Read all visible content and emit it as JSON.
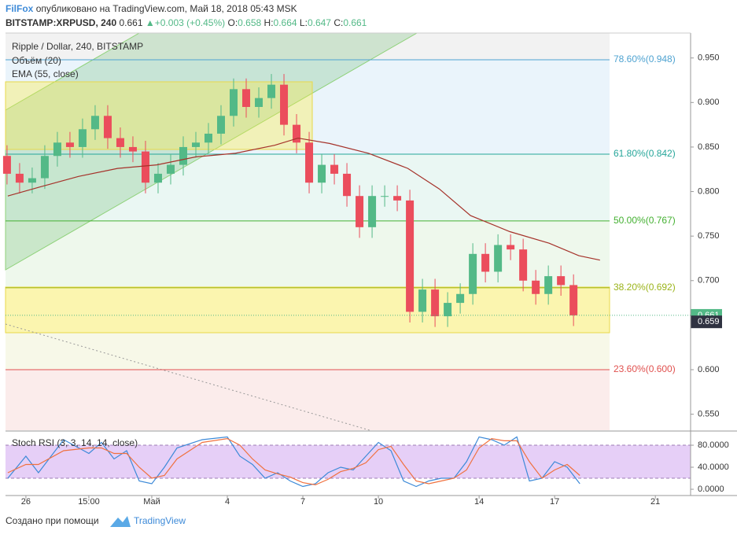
{
  "header": {
    "author": "FilFox",
    "published": "опубликовано на TradingView.com, Май 18, 2018 05:43 MSK",
    "symbol": "BITSTAMP:XRPUSD, 240",
    "last": "0.661",
    "change": "+0.003 (+0.45%)",
    "ohlc": [
      {
        "label": "O:",
        "value": "0.658"
      },
      {
        "label": "H:",
        "value": "0.664"
      },
      {
        "label": "L:",
        "value": "0.647"
      },
      {
        "label": "C:",
        "value": "0.661"
      }
    ]
  },
  "chart_data": {
    "type": "candlestick",
    "title": "Ripple / Dollar, 240, BITSTAMP",
    "volume_label": "Объём (20)",
    "up_color": "#53b987",
    "down_color": "#eb4d5c",
    "x": [
      -0.75,
      -0.25,
      0.25,
      0.75,
      1.25,
      1.75,
      2.25,
      2.75,
      3.25,
      3.75,
      4.25,
      4.75,
      5.25,
      5.75,
      6.25,
      6.75,
      7.25,
      7.75,
      8.25,
      8.75,
      9.25,
      9.75,
      10.25,
      10.75,
      11.25,
      11.75,
      12.25,
      12.75,
      13.25,
      13.75,
      14.25,
      14.75,
      15.25,
      15.75,
      16.25,
      16.75,
      17.25,
      17.75,
      18.25,
      18.75,
      19.25,
      19.75,
      20.25,
      20.75,
      21.25,
      21.75
    ],
    "open": [
      0.84,
      0.82,
      0.81,
      0.815,
      0.84,
      0.855,
      0.85,
      0.87,
      0.885,
      0.86,
      0.85,
      0.845,
      0.81,
      0.82,
      0.83,
      0.85,
      0.855,
      0.865,
      0.885,
      0.915,
      0.895,
      0.905,
      0.92,
      0.875,
      0.855,
      0.81,
      0.83,
      0.82,
      0.795,
      0.76,
      0.795,
      0.795,
      0.79,
      0.665,
      0.69,
      0.66,
      0.675,
      0.685,
      0.73,
      0.71,
      0.74,
      0.735,
      0.7,
      0.685,
      0.705,
      0.695
    ],
    "high": [
      0.852,
      0.832,
      0.827,
      0.852,
      0.867,
      0.867,
      0.882,
      0.897,
      0.897,
      0.872,
      0.862,
      0.857,
      0.832,
      0.842,
      0.862,
      0.867,
      0.877,
      0.897,
      0.927,
      0.927,
      0.917,
      0.932,
      0.932,
      0.887,
      0.867,
      0.842,
      0.842,
      0.832,
      0.807,
      0.807,
      0.807,
      0.807,
      0.802,
      0.702,
      0.702,
      0.687,
      0.697,
      0.742,
      0.742,
      0.752,
      0.752,
      0.747,
      0.712,
      0.717,
      0.717,
      0.707
    ],
    "low": [
      0.808,
      0.798,
      0.798,
      0.803,
      0.828,
      0.838,
      0.838,
      0.858,
      0.848,
      0.838,
      0.833,
      0.798,
      0.798,
      0.808,
      0.818,
      0.838,
      0.843,
      0.853,
      0.873,
      0.883,
      0.883,
      0.893,
      0.863,
      0.843,
      0.798,
      0.798,
      0.808,
      0.783,
      0.748,
      0.748,
      0.783,
      0.778,
      0.653,
      0.653,
      0.648,
      0.648,
      0.663,
      0.673,
      0.698,
      0.698,
      0.723,
      0.688,
      0.673,
      0.673,
      0.683,
      0.649
    ],
    "close": [
      0.82,
      0.81,
      0.815,
      0.84,
      0.855,
      0.85,
      0.87,
      0.885,
      0.86,
      0.85,
      0.845,
      0.81,
      0.82,
      0.83,
      0.85,
      0.855,
      0.865,
      0.885,
      0.915,
      0.895,
      0.905,
      0.92,
      0.875,
      0.855,
      0.81,
      0.83,
      0.82,
      0.795,
      0.76,
      0.795,
      0.795,
      0.79,
      0.665,
      0.69,
      0.66,
      0.675,
      0.685,
      0.73,
      0.71,
      0.74,
      0.735,
      0.7,
      0.685,
      0.705,
      0.695,
      0.661
    ],
    "ema": {
      "name": "EMA (55, close)",
      "color": "#a5322a",
      "x": [
        -0.72,
        0.53,
        2.09,
        3.64,
        5.2,
        6.76,
        8.32,
        9.88,
        10.81,
        12.06,
        13.61,
        15.17,
        16.42,
        17.66,
        19.22,
        20.78,
        21.96,
        22.8
      ],
      "values": [
        0.795,
        0.805,
        0.817,
        0.826,
        0.83,
        0.839,
        0.843,
        0.852,
        0.86,
        0.854,
        0.843,
        0.826,
        0.803,
        0.773,
        0.755,
        0.742,
        0.728,
        0.723
      ]
    },
    "xlim": [
      -0.81,
      26.4
    ],
    "xticks": [
      {
        "value": 0,
        "label": "26"
      },
      {
        "value": 2.5,
        "label": "15:00"
      },
      {
        "value": 5,
        "label": "Май"
      },
      {
        "value": 8,
        "label": "4"
      },
      {
        "value": 11,
        "label": "7"
      },
      {
        "value": 14,
        "label": "10"
      },
      {
        "value": 18,
        "label": "14"
      },
      {
        "value": 21,
        "label": "17"
      },
      {
        "value": 25,
        "label": "21"
      }
    ],
    "ylim": [
      0.532,
      0.978
    ],
    "yticks": [
      {
        "value": 0.55,
        "label": "0.550"
      },
      {
        "value": 0.6,
        "label": "0.600"
      },
      {
        "value": 0.65,
        "label": "0.650"
      },
      {
        "value": 0.7,
        "label": "0.700"
      },
      {
        "value": 0.75,
        "label": "0.750"
      },
      {
        "value": 0.8,
        "label": "0.800"
      },
      {
        "value": 0.85,
        "label": "0.850"
      },
      {
        "value": 0.9,
        "label": "0.900"
      },
      {
        "value": 0.95,
        "label": "0.950"
      }
    ],
    "fib_levels": [
      {
        "label": "78.60%(0.948)",
        "value": 0.948,
        "color": "#4fa3d1",
        "fill": "#eaf4fb"
      },
      {
        "label": "61.80%(0.842)",
        "value": 0.842,
        "color": "#26a69a",
        "fill": "#eaf7f3"
      },
      {
        "label": "50.00%(0.767)",
        "value": 0.767,
        "color": "#43b030",
        "fill": "#eef8ec"
      },
      {
        "label": "38.20%(0.692)",
        "value": 0.692,
        "color": "#9bb41a",
        "fill": "#f7f8e8"
      },
      {
        "label": "23.60%(0.600)",
        "value": 0.6,
        "color": "#e0514f",
        "fill": "#fbeceb"
      }
    ],
    "price_tags": [
      {
        "value": 0.661,
        "color": "#53b987"
      },
      {
        "value": 0.659,
        "color": "#2f3241"
      }
    ],
    "stoch": {
      "title": "Stoch RSI (3, 3, 14, 14, close)",
      "ylim": [
        -11.4,
        102.9
      ],
      "band": [
        20,
        80
      ],
      "yticks": [
        {
          "value": 0,
          "label": "0.0000"
        },
        {
          "value": 40,
          "label": "40.0000"
        },
        {
          "value": 80,
          "label": "80.0000"
        }
      ],
      "x": [
        -0.72,
        0,
        0.5,
        1.5,
        2.5,
        3,
        3.5,
        4,
        4.5,
        5,
        5.5,
        6,
        7,
        8,
        8.5,
        9,
        9.5,
        10,
        10.5,
        11,
        11.5,
        12,
        12.5,
        13,
        13.5,
        14,
        14.5,
        15,
        15.5,
        16,
        16.5,
        17,
        17.5,
        18,
        18.5,
        19,
        19.5,
        20,
        20.5,
        21,
        21.5,
        22
      ],
      "series": [
        {
          "color": "#3d8ad8",
          "values": [
            20,
            60,
            30,
            90,
            65,
            85,
            55,
            70,
            15,
            10,
            40,
            75,
            90,
            95,
            60,
            45,
            20,
            30,
            15,
            5,
            10,
            30,
            40,
            35,
            60,
            85,
            70,
            15,
            5,
            15,
            20,
            20,
            50,
            95,
            90,
            80,
            95,
            15,
            20,
            50,
            40,
            10
          ]
        },
        {
          "color": "#f0713f",
          "values": [
            30,
            45,
            45,
            70,
            75,
            75,
            65,
            65,
            40,
            20,
            25,
            55,
            85,
            92,
            80,
            55,
            35,
            28,
            22,
            12,
            8,
            18,
            32,
            38,
            48,
            72,
            78,
            45,
            15,
            10,
            15,
            20,
            35,
            75,
            92,
            88,
            88,
            50,
            20,
            35,
            45,
            25
          ]
        }
      ]
    }
  },
  "footer": {
    "made_with": "Создано при помощи",
    "brand": "TradingView"
  }
}
